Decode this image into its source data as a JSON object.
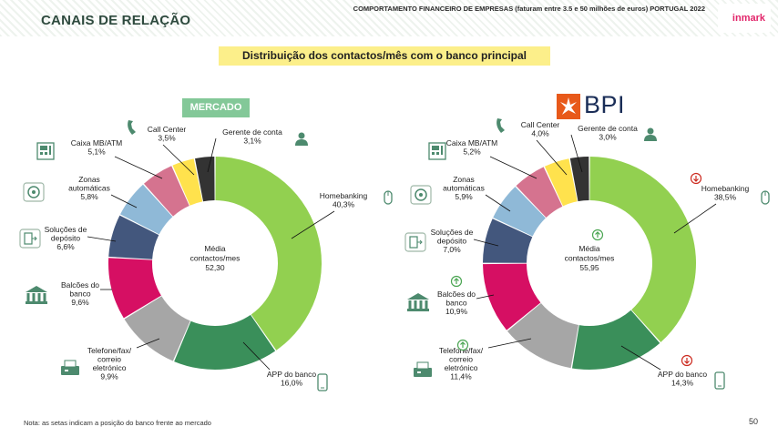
{
  "header": {
    "section_title": "CANAIS DE RELAÇÃO",
    "subtitle": "COMPORTAMENTO FINANCEIRO DE EMPRESAS (faturam entre 3.5 e 50 milhões de euros) PORTUGAL 2022",
    "logo": "inmark"
  },
  "headline": "Distribuição dos contactos/mês com o banco principal",
  "market_badge": "MERCADO",
  "bpi_logo": "BPI",
  "footer": {
    "note": "Nota: as setas indicam a posição do banco frente ao mercado",
    "page": "50"
  },
  "colors": {
    "homebanking": "#92d050",
    "app": "#3a8f5a",
    "telefone": "#a6a6a6",
    "balcoes": "#d60f63",
    "solucoes": "#43577d",
    "zonas": "#8fb9d7",
    "caixa": "#d5738f",
    "callcenter": "#ffe24d",
    "gerente": "#333333",
    "icon": "#4d8a6e",
    "arrow_up": "#4aa552",
    "arrow_down": "#cc2a1f"
  },
  "chart_data": [
    {
      "type": "pie",
      "variant": "donut",
      "center_label": [
        "Média",
        "contactos/mes",
        "52,30"
      ],
      "slices": [
        {
          "key": "homebanking",
          "label": [
            "Homebanking"
          ],
          "value": 40.3,
          "display": "40,3%",
          "icon": "mouse-icon"
        },
        {
          "key": "app",
          "label": [
            "APP do banco"
          ],
          "value": 16.0,
          "display": "16,0%",
          "icon": "phone-icon"
        },
        {
          "key": "telefone",
          "label": [
            "Telefone/fax/",
            "correio",
            "eletrónico"
          ],
          "value": 9.9,
          "display": "9,9%",
          "icon": "fax-icon"
        },
        {
          "key": "balcoes",
          "label": [
            "Balcões do",
            "banco"
          ],
          "value": 9.6,
          "display": "9,6%",
          "icon": "bank-icon"
        },
        {
          "key": "solucoes",
          "label": [
            "Soluções de",
            "depósito"
          ],
          "value": 6.6,
          "display": "6,6%",
          "icon": "deposit-icon"
        },
        {
          "key": "zonas",
          "label": [
            "Zonas",
            "automáticas"
          ],
          "value": 5.8,
          "display": "5,8%",
          "icon": "safe-icon"
        },
        {
          "key": "caixa",
          "label": [
            "Caixa MB/ATM"
          ],
          "value": 5.1,
          "display": "5,1%",
          "icon": "atm-icon"
        },
        {
          "key": "callcenter",
          "label": [
            "Call Center"
          ],
          "value": 3.5,
          "display": "3,5%",
          "icon": "phone-handset-icon"
        },
        {
          "key": "gerente",
          "label": [
            "Gerente de conta"
          ],
          "value": 3.1,
          "display": "3,1%",
          "icon": "person-icon"
        }
      ]
    },
    {
      "type": "pie",
      "variant": "donut",
      "center_label": [
        "Média",
        "contactos/mes",
        "55,95"
      ],
      "center_arrow": "up",
      "slices": [
        {
          "key": "homebanking",
          "label": [
            "Homebanking"
          ],
          "value": 38.5,
          "display": "38,5%",
          "icon": "mouse-icon",
          "arrow": "down"
        },
        {
          "key": "app",
          "label": [
            "APP do banco"
          ],
          "value": 14.3,
          "display": "14,3%",
          "icon": "phone-icon",
          "arrow": "down"
        },
        {
          "key": "telefone",
          "label": [
            "Telefone/fax/",
            "correio",
            "eletrónico"
          ],
          "value": 11.4,
          "display": "11,4%",
          "icon": "fax-icon",
          "arrow": "up"
        },
        {
          "key": "balcoes",
          "label": [
            "Balcões do",
            "banco"
          ],
          "value": 10.9,
          "display": "10,9%",
          "icon": "bank-icon",
          "arrow": "up"
        },
        {
          "key": "solucoes",
          "label": [
            "Soluções de",
            "depósito"
          ],
          "value": 7.0,
          "display": "7,0%",
          "icon": "deposit-icon"
        },
        {
          "key": "zonas",
          "label": [
            "Zonas",
            "automáticas"
          ],
          "value": 5.9,
          "display": "5,9%",
          "icon": "safe-icon"
        },
        {
          "key": "caixa",
          "label": [
            "Caixa MB/ATM"
          ],
          "value": 5.2,
          "display": "5,2%",
          "icon": "atm-icon"
        },
        {
          "key": "callcenter",
          "label": [
            "Call Center"
          ],
          "value": 4.0,
          "display": "4,0%",
          "icon": "phone-handset-icon"
        },
        {
          "key": "gerente",
          "label": [
            "Gerente de conta"
          ],
          "value": 3.0,
          "display": "3,0%",
          "icon": "person-icon"
        }
      ]
    }
  ]
}
